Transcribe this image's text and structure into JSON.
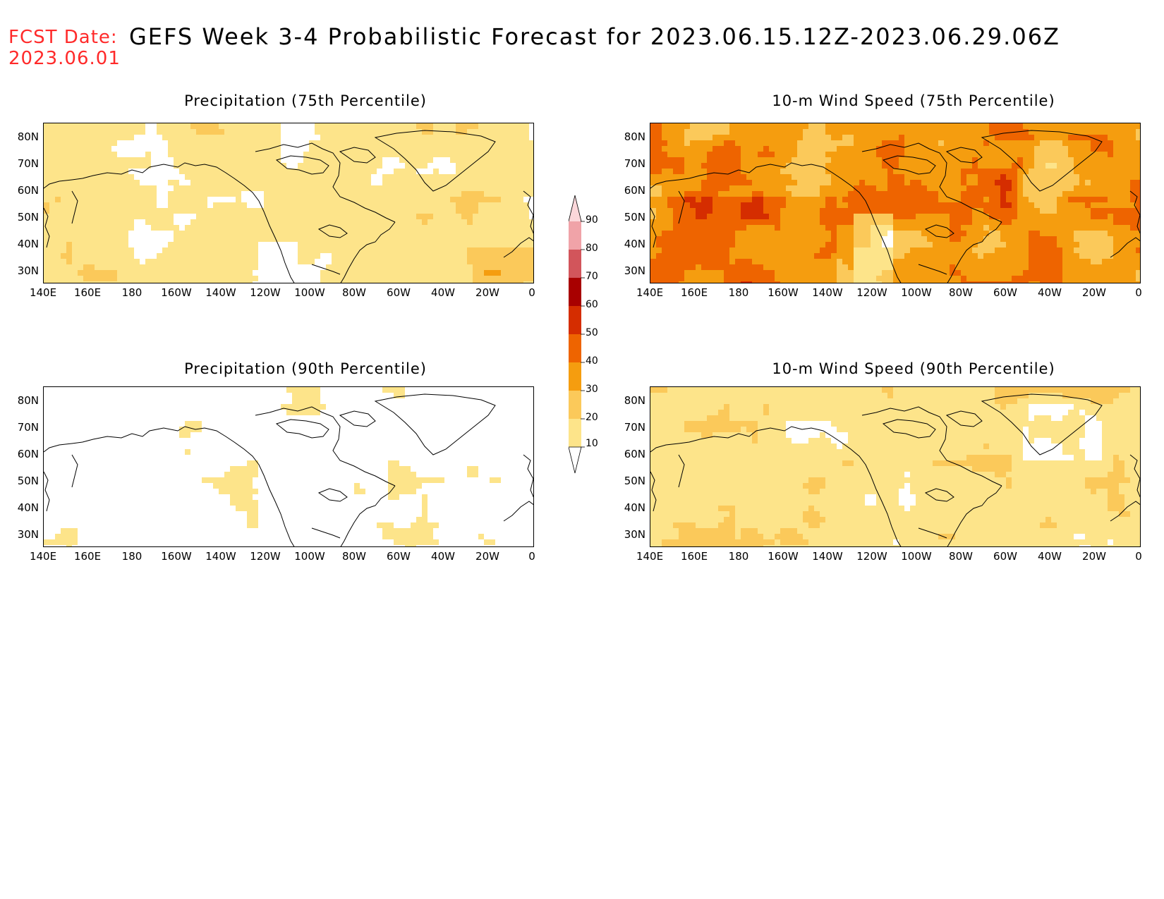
{
  "forecast_date": {
    "label": "FCST Date:",
    "value": "2023.06.01"
  },
  "title": "GEFS Week 3-4 Probabilistic Forecast for 2023.06.15.12Z-2023.06.29.06Z",
  "panels": [
    {
      "title": "Precipitation (75th Percentile)",
      "field": "precip75"
    },
    {
      "title": "10-m Wind Speed (75th Percentile)",
      "field": "wind75"
    },
    {
      "title": "Precipitation (90th Percentile)",
      "field": "precip90"
    },
    {
      "title": "10-m Wind Speed (90th Percentile)",
      "field": "wind90"
    }
  ],
  "axes": {
    "lat_labels": [
      "80N",
      "70N",
      "60N",
      "50N",
      "40N",
      "30N"
    ],
    "lon_labels": [
      "140E",
      "160E",
      "180",
      "160W",
      "140W",
      "120W",
      "100W",
      "80W",
      "60W",
      "40W",
      "20W",
      "0"
    ]
  },
  "colorbar": {
    "levels": [
      "10",
      "20",
      "30",
      "40",
      "50",
      "60",
      "70",
      "80",
      "90"
    ],
    "colors": [
      "#fff8b4",
      "#fde48a",
      "#fbc95a",
      "#f59d0f",
      "#ee6400",
      "#d52d00",
      "#a80000",
      "#d2555b",
      "#f0a3a8",
      "#fbd7da"
    ]
  }
}
